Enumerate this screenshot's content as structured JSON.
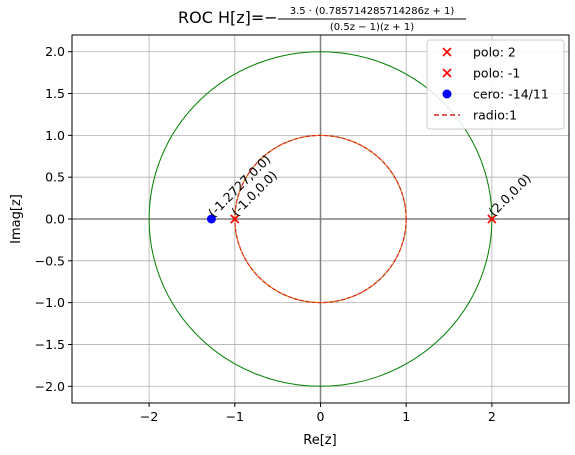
{
  "chart_data": {
    "type": "scatter",
    "title": {
      "prefix": "ROC H[z]=−",
      "numerator": "3.5 · (0.785714285714286z + 1)",
      "denominator": "(0.5z − 1)(z + 1)"
    },
    "xlabel": "Re[z]",
    "ylabel": "Imag[z]",
    "xlim": [
      -2.9,
      2.9
    ],
    "ylim": [
      -2.2,
      2.2
    ],
    "xticks": [
      -2,
      -1,
      0,
      1,
      2
    ],
    "yticks": [
      -2.0,
      -1.5,
      -1.0,
      -0.5,
      0.0,
      0.5,
      1.0,
      1.5,
      2.0
    ],
    "xtick_labels": [
      "−2",
      "−1",
      "0",
      "1",
      "2"
    ],
    "ytick_labels": [
      "−2.0",
      "−1.5",
      "−1.0",
      "−0.5",
      "0.0",
      "0.5",
      "1.0",
      "1.5",
      "2.0"
    ],
    "grid": true,
    "legend_position": "top-right",
    "poles": [
      {
        "name": "polo: 2",
        "x": 2,
        "y": 0,
        "annotation": "(2.0,0.0)"
      },
      {
        "name": "polo: -1",
        "x": -1,
        "y": 0,
        "annotation": "(-1.0,0.0)"
      }
    ],
    "zeros": [
      {
        "name": "cero: -14/11",
        "x": -1.2727,
        "y": 0,
        "annotation": "(-1.2727,0.0)"
      }
    ],
    "circles": [
      {
        "radius": 1,
        "color": "#d62728",
        "style": "dashed",
        "name": "radio:1",
        "in_legend": true
      },
      {
        "radius": 1,
        "color": "#ff7f0e",
        "style": "solid",
        "in_legend": false
      },
      {
        "radius": 1,
        "color": "#2ca02c",
        "style": "solid",
        "in_legend": false
      },
      {
        "radius": 2,
        "color": "#008000",
        "style": "solid",
        "in_legend": false
      }
    ],
    "colors": {
      "pole": "#ff0000",
      "zero": "#0000ff",
      "grid": "#b0b0b0",
      "axis_lines": "#808080"
    },
    "legend": [
      {
        "label": "polo: 2",
        "marker": "x",
        "color": "#ff0000"
      },
      {
        "label": "polo: -1",
        "marker": "x",
        "color": "#ff0000"
      },
      {
        "label": "cero: -14/11",
        "marker": "o",
        "color": "#0000ff"
      },
      {
        "label": "radio:1",
        "marker": "dashed-line",
        "color": "#d62728"
      }
    ]
  }
}
